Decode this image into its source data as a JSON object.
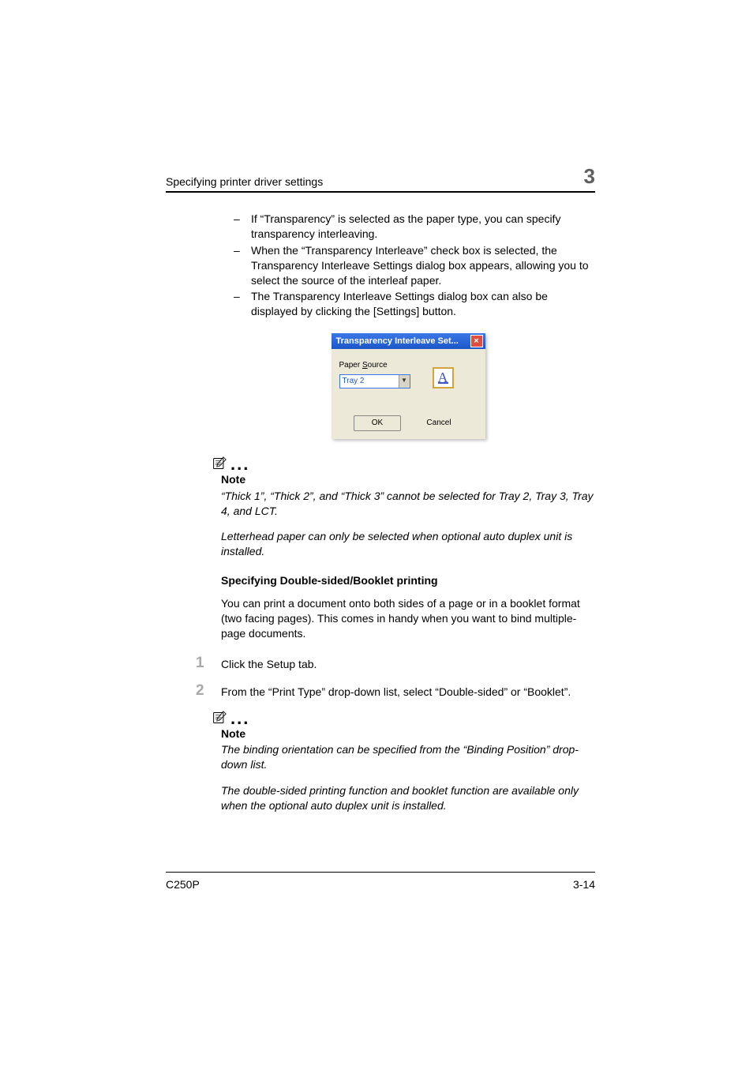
{
  "header": {
    "title": "Specifying printer driver settings",
    "chapter": "3"
  },
  "bullets": [
    "If “Transparency” is selected as the paper type, you can specify transparency interleaving.",
    "When the “Transparency Interleave” check box is selected, the Transparency Interleave Settings dialog box appears, allowing you to select the source of the interleaf paper.",
    "The Transparency Interleave Settings dialog box can also be displayed by clicking the [Settings] button."
  ],
  "dialog": {
    "title": "Transparency Interleave Set...",
    "paper_source_label": "Paper Source",
    "paper_source_value": "Tray 2",
    "icon_letter": "A",
    "ok_label": "OK",
    "cancel_label": "Cancel",
    "colors": {
      "titlebar_start": "#3b78e7",
      "titlebar_end": "#1c57c9",
      "body_bg": "#ece9d8",
      "close_bg": "#e04e3d",
      "icon_border": "#d3a33c",
      "icon_text": "#4458c8"
    }
  },
  "note1": {
    "label": "Note",
    "p1": "“Thick 1”, “Thick 2”, and “Thick 3” cannot be selected for Tray 2, Tray 3, Tray 4, and LCT.",
    "p2": "Letterhead paper can only be selected when optional auto duplex unit is installed."
  },
  "section": {
    "heading": "Specifying Double-sided/Booklet printing",
    "intro": "You can print a document onto both sides of a page or in a booklet format (two facing pages). This comes in handy when you want to bind multiple-page documents."
  },
  "steps": [
    {
      "num": "1",
      "text": "Click the Setup tab."
    },
    {
      "num": "2",
      "text": "From the “Print Type” drop-down list, select “Double-sided” or “Booklet”."
    }
  ],
  "note2": {
    "label": "Note",
    "p1": "The binding orientation can be specified from the “Binding Position” drop-down list.",
    "p2": "The double-sided printing function and booklet function are available only when the optional auto duplex unit is installed."
  },
  "footer": {
    "model": "C250P",
    "page": "3-14"
  },
  "palette": {
    "step_num_color": "#a9a9a9",
    "chapter_color": "#5f5f5f",
    "text_color": "#000000",
    "page_bg": "#ffffff"
  }
}
